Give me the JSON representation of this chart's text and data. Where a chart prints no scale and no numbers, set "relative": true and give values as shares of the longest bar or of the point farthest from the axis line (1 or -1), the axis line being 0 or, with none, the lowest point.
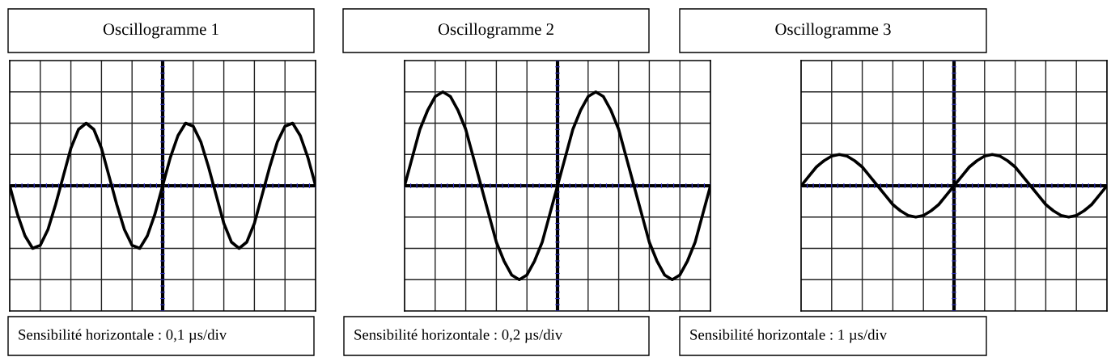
{
  "chart_data": [
    {
      "type": "line",
      "title": "Oscillogramme 1",
      "annotations": [
        "Sensibilité horizontale : 0,1 µs/div"
      ],
      "relative": true,
      "grid": true,
      "ylim": [
        -2,
        2
      ],
      "categories": [
        null,
        null,
        null,
        null,
        null,
        null,
        null,
        null,
        null,
        null,
        null,
        null,
        null,
        null,
        null,
        null,
        null,
        null,
        null,
        null,
        null,
        null,
        null,
        null,
        null,
        null,
        null,
        null,
        null,
        null,
        null,
        null,
        null,
        null,
        null,
        null,
        null,
        null,
        null,
        null,
        null
      ],
      "series": [
        {
          "color": "#000000",
          "values": [
            0.0,
            -0.45,
            -0.8,
            -1.0,
            -0.95,
            -0.7,
            -0.3,
            0.15,
            0.6,
            0.9,
            1.0,
            0.9,
            0.6,
            0.15,
            -0.3,
            -0.7,
            -0.95,
            -1.0,
            -0.8,
            -0.45,
            0.0,
            0.45,
            0.8,
            1.0,
            0.95,
            0.7,
            0.3,
            -0.15,
            -0.6,
            -0.9,
            -1.0,
            -0.9,
            -0.6,
            -0.15,
            0.3,
            0.7,
            0.95,
            1.0,
            0.8,
            0.45,
            0.0
          ]
        }
      ]
    },
    {
      "type": "line",
      "title": "Oscillogramme 2",
      "annotations": [
        "Sensibilité horizontale : 0,2 µs/div"
      ],
      "relative": true,
      "grid": true,
      "ylim": [
        -1.333,
        1.333
      ],
      "categories": [
        null,
        null,
        null,
        null,
        null,
        null,
        null,
        null,
        null,
        null,
        null,
        null,
        null,
        null,
        null,
        null,
        null,
        null,
        null,
        null,
        null,
        null,
        null,
        null,
        null,
        null,
        null,
        null,
        null,
        null,
        null,
        null,
        null,
        null,
        null,
        null,
        null,
        null,
        null,
        null,
        null
      ],
      "series": [
        {
          "color": "#000000",
          "values": [
            0.0,
            0.3,
            0.6,
            0.8,
            0.95,
            1.0,
            0.95,
            0.8,
            0.6,
            0.3,
            0.0,
            -0.3,
            -0.6,
            -0.8,
            -0.95,
            -1.0,
            -0.95,
            -0.8,
            -0.6,
            -0.3,
            0.0,
            0.3,
            0.6,
            0.8,
            0.95,
            1.0,
            0.95,
            0.8,
            0.6,
            0.3,
            0.0,
            -0.3,
            -0.6,
            -0.8,
            -0.95,
            -1.0,
            -0.95,
            -0.8,
            -0.6,
            -0.3,
            0.0
          ]
        }
      ]
    },
    {
      "type": "line",
      "title": "Oscillogramme 3",
      "annotations": [
        "Sensibilité horizontale : 1 µs/div"
      ],
      "relative": true,
      "grid": true,
      "ylim": [
        -4,
        4
      ],
      "categories": [
        null,
        null,
        null,
        null,
        null,
        null,
        null,
        null,
        null,
        null,
        null,
        null,
        null,
        null,
        null,
        null,
        null,
        null,
        null,
        null,
        null,
        null,
        null,
        null,
        null,
        null,
        null,
        null,
        null,
        null,
        null,
        null,
        null,
        null,
        null,
        null,
        null,
        null,
        null,
        null,
        null
      ],
      "series": [
        {
          "color": "#000000",
          "values": [
            0.0,
            0.3,
            0.6,
            0.8,
            0.95,
            1.0,
            0.95,
            0.8,
            0.6,
            0.3,
            0.0,
            -0.3,
            -0.6,
            -0.8,
            -0.95,
            -1.0,
            -0.95,
            -0.8,
            -0.6,
            -0.3,
            0.0,
            0.3,
            0.6,
            0.8,
            0.95,
            1.0,
            0.95,
            0.8,
            0.6,
            0.3,
            0.0,
            -0.3,
            -0.6,
            -0.8,
            -0.95,
            -1.0,
            -0.95,
            -0.8,
            -0.6,
            -0.3,
            0.0
          ]
        }
      ]
    }
  ]
}
